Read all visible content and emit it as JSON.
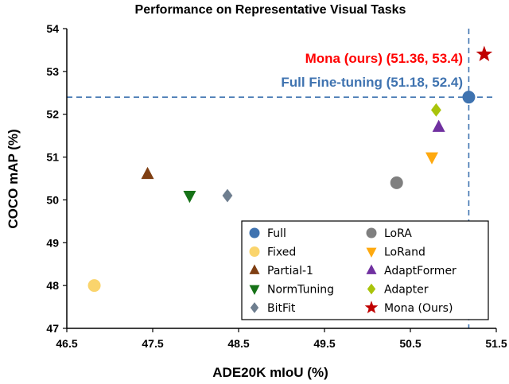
{
  "chart_data": {
    "type": "scatter",
    "title": "Performance on Representative Visual Tasks",
    "xlabel": "ADE20K mIoU (%)",
    "ylabel": "COCO mAP (%)",
    "xlim": [
      46.5,
      51.5
    ],
    "ylim": [
      47,
      54
    ],
    "xticks": [
      "46.5",
      "47.5",
      "48.5",
      "49.5",
      "50.5",
      "51.5"
    ],
    "yticks": [
      "47",
      "48",
      "49",
      "50",
      "51",
      "52",
      "53",
      "54"
    ],
    "grid": false,
    "legend_position": "bottom-right",
    "series": [
      {
        "name": "Full",
        "marker": "circle",
        "color": "#3F73B0",
        "x": 51.18,
        "y": 52.4
      },
      {
        "name": "Fixed",
        "marker": "circle",
        "color": "#FAD46C",
        "x": 46.82,
        "y": 48.0
      },
      {
        "name": "Partial-1",
        "marker": "triangle-up",
        "color": "#7F3F13",
        "x": 47.44,
        "y": 50.6
      },
      {
        "name": "NormTuning",
        "marker": "triangle-down",
        "color": "#167217",
        "x": 47.93,
        "y": 50.1
      },
      {
        "name": "BitFit",
        "marker": "diamond",
        "color": "#6E7E8F",
        "x": 48.37,
        "y": 50.1
      },
      {
        "name": "LoRA",
        "marker": "circle",
        "color": "#7F7F7F",
        "x": 50.34,
        "y": 50.4
      },
      {
        "name": "LoRand",
        "marker": "triangle-down",
        "color": "#FEA90F",
        "x": 50.75,
        "y": 51.0
      },
      {
        "name": "AdaptFormer",
        "marker": "triangle-up",
        "color": "#7031A0",
        "x": 50.83,
        "y": 51.7
      },
      {
        "name": "Adapter",
        "marker": "diamond",
        "color": "#A9C40B",
        "x": 50.8,
        "y": 52.1
      },
      {
        "name": "Mona (Ours)",
        "marker": "star",
        "color": "#C00000",
        "x": 51.36,
        "y": 53.4
      }
    ],
    "reference_lines": {
      "x": 51.18,
      "y": 52.4,
      "color": "#3F73B0",
      "style": "dashed"
    },
    "annotations": [
      {
        "text": "Mona (ours) (51.36, 53.4)",
        "color": "#FF0000"
      },
      {
        "text": "Full Fine-tuning (51.18, 52.4)",
        "color": "#3F73B0"
      }
    ]
  }
}
